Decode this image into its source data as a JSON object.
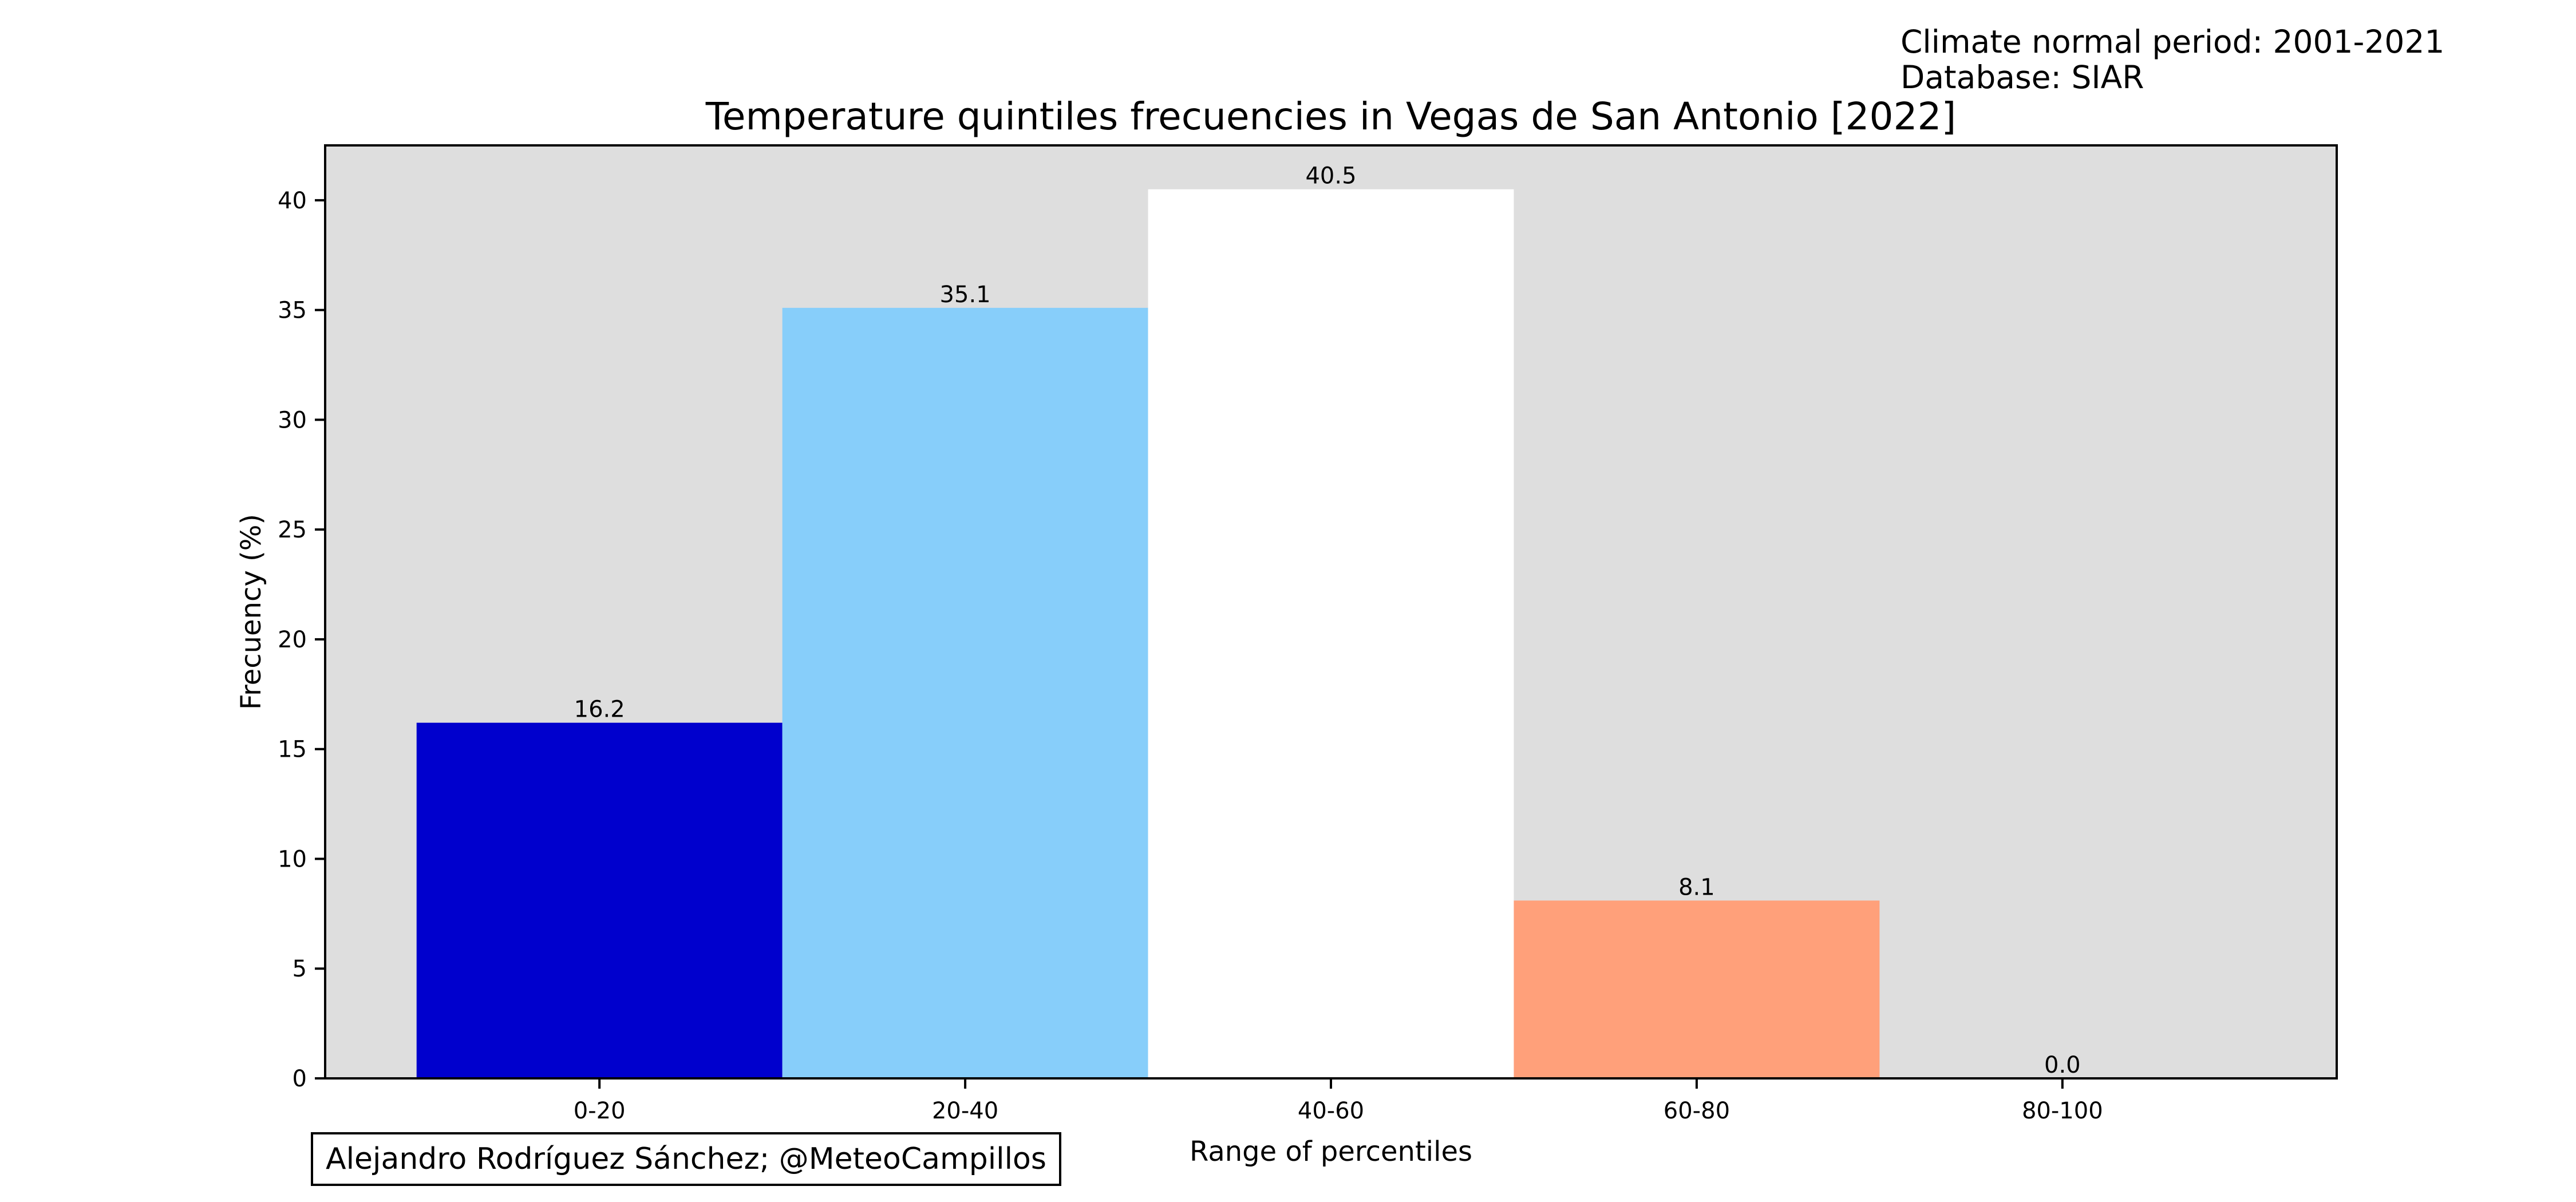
{
  "header": {
    "line1": "Climate normal period: 2001-2021",
    "line2": "Database: SIAR"
  },
  "credit": "Alejandro Rodríguez Sánchez; @MeteoCampillos",
  "chart_data": {
    "type": "bar",
    "title": "Temperature quintiles frecuencies in Vegas de San Antonio [2022]",
    "xlabel": "Range of percentiles",
    "ylabel": "Frecuency (%)",
    "categories": [
      "0-20",
      "20-40",
      "40-60",
      "60-80",
      "80-100"
    ],
    "values": [
      16.2,
      35.1,
      40.5,
      8.1,
      0.0
    ],
    "value_labels": [
      "16.2",
      "35.1",
      "40.5",
      "8.1",
      "0.0"
    ],
    "colors": [
      "#0000cd",
      "#87cefa",
      "#ffffff",
      "#ffa07a",
      "#8b0000"
    ],
    "ylim": [
      0,
      42.5
    ],
    "yticks": [
      0,
      5,
      10,
      15,
      20,
      25,
      30,
      35,
      40
    ],
    "background": "#dedede",
    "grid": false,
    "legend": "none"
  }
}
